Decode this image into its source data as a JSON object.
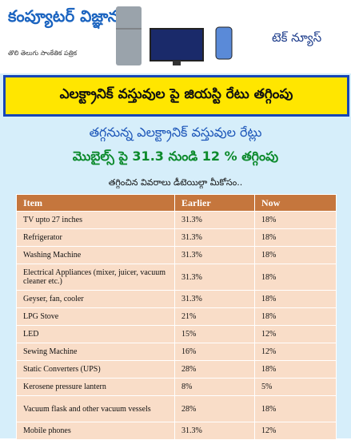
{
  "header": {
    "logo": "కంప్యూటర్ విజ్ఞానం",
    "tagline": "తొలి తెలుగు సాంకేతిక పత్రిక",
    "section": "టెక్ న్యూస్"
  },
  "banner": {
    "title": "ఎలక్ట్రానిక్ వస్తువుల పై జియస్టి రేటు తగ్గింపు"
  },
  "intro": {
    "line1": "తగ్గనున్న ఎలక్ట్రానిక్ వస్తువుల రేట్లు",
    "line2": "మొబైల్స్ పై 31.3 నుండి 12 % తగ్గింపు",
    "line3": "తగ్గించిన వివరాలు డీటెయిల్గా మీకోసం.."
  },
  "table": {
    "columns": [
      "Item",
      "Earlier",
      "Now"
    ],
    "rows": [
      [
        "TV upto 27 inches",
        "31.3%",
        "18%"
      ],
      [
        "Refrigerator",
        "31.3%",
        "18%"
      ],
      [
        "Washing Machine",
        "31.3%",
        "18%"
      ],
      [
        "Electrical Appliances (mixer, juicer, vacuum cleaner etc.)",
        "31.3%",
        "18%"
      ],
      [
        "Geyser, fan, cooler",
        "31.3%",
        "18%"
      ],
      [
        "LPG Stove",
        "21%",
        "18%"
      ],
      [
        "LED",
        "15%",
        "12%"
      ],
      [
        "Sewing Machine",
        "16%",
        "12%"
      ],
      [
        "Static Converters (UPS)",
        "28%",
        "18%"
      ],
      [
        "Kerosene pressure lantern",
        "8%",
        "5%"
      ],
      [
        "Vacuum flask and other vacuum vessels",
        "28%",
        "18%"
      ],
      [
        "Mobile phones",
        "31.3%",
        "12%"
      ]
    ]
  }
}
